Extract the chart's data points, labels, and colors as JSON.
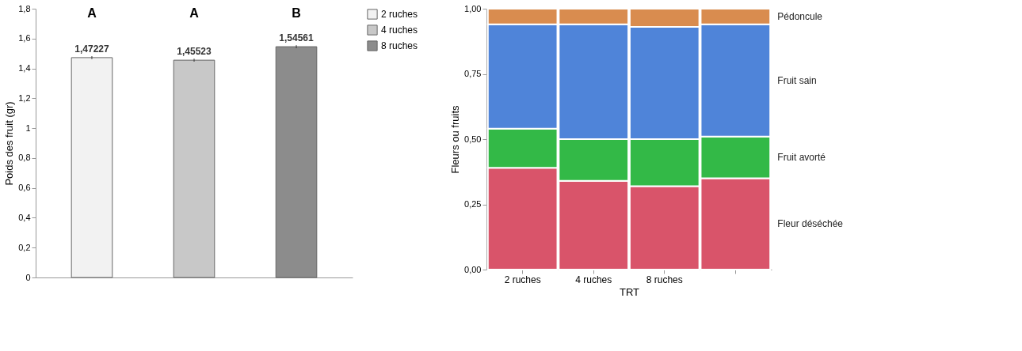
{
  "chart_data": [
    {
      "type": "bar",
      "ylabel": "Poids des fruit (gr)",
      "categories": [
        null,
        null,
        null
      ],
      "series": [
        {
          "name": "2 ruches",
          "color": "#f2f2f2",
          "values": [
            1.47227,
            null,
            null
          ],
          "errors": [
            0.01,
            null,
            null
          ],
          "value_labels": [
            "1,47227",
            null,
            null
          ]
        },
        {
          "name": "4 ruches",
          "color": "#c8c8c8",
          "values": [
            null,
            1.45523,
            null
          ],
          "errors": [
            null,
            0.01,
            null
          ],
          "value_labels": [
            null,
            "1,45523",
            null
          ]
        },
        {
          "name": "8 ruches",
          "color": "#8c8c8c",
          "values": [
            null,
            null,
            1.54561
          ],
          "errors": [
            null,
            null,
            0.01
          ],
          "value_labels": [
            null,
            null,
            "1,54561"
          ]
        }
      ],
      "annotations": [
        "A",
        "A",
        "B"
      ],
      "ylim": [
        0,
        1.8
      ],
      "yticks": [
        0,
        {
          "value": 0.2,
          "label": "0,2"
        },
        {
          "value": 0.4,
          "label": "0,4"
        },
        {
          "value": 0.6,
          "label": "0,6"
        },
        {
          "value": 0.8,
          "label": "0,8"
        },
        1,
        {
          "value": 1.2,
          "label": "1,2"
        },
        {
          "value": 1.4,
          "label": "1,4"
        },
        {
          "value": 1.6,
          "label": "1,6"
        },
        {
          "value": 1.8,
          "label": "1,8"
        }
      ],
      "tick_labels": "y",
      "legend": "right",
      "grid": false
    },
    {
      "type": "bar",
      "stacked": true,
      "xlabel": "TRT",
      "ylabel": "Fleurs ou fruits",
      "categories": [
        "2 ruches",
        "4 ruches",
        "8 ruches",
        null
      ],
      "series": [
        {
          "name": "Fleur déséchée",
          "color": "#d9546a",
          "values": [
            0.39,
            0.34,
            0.32,
            0.35
          ]
        },
        {
          "name": "Fruit avorté",
          "color": "#33b947",
          "values": [
            0.15,
            0.16,
            0.18,
            0.16
          ]
        },
        {
          "name": "Fruit sain",
          "color": "#4f84d9",
          "values": [
            0.4,
            0.44,
            0.43,
            0.43
          ]
        },
        {
          "name": "Pédoncule",
          "color": "#d98c4f",
          "values": [
            0.06,
            0.06,
            0.07,
            0.06
          ]
        }
      ],
      "ylim": [
        0,
        1
      ],
      "yticks": [
        {
          "value": 0,
          "label": "0,00"
        },
        {
          "value": 0.25,
          "label": "0,25"
        },
        {
          "value": 0.5,
          "label": "0,50"
        },
        {
          "value": 0.75,
          "label": "0,75"
        },
        {
          "value": 1,
          "label": "1,00"
        }
      ],
      "legend": false,
      "grid": false
    }
  ]
}
